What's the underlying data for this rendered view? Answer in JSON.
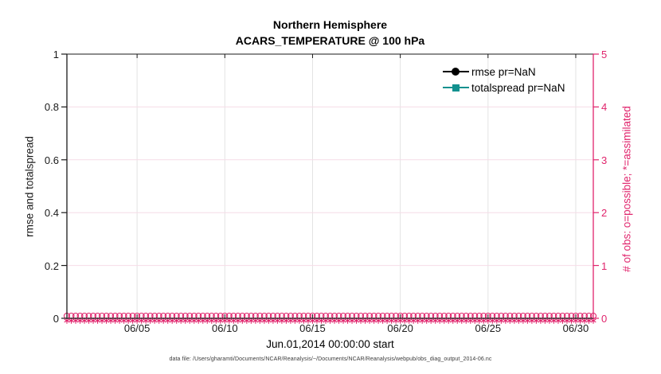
{
  "figure": {
    "title_line1": "Northern Hemisphere",
    "title_line2": "ACARS_TEMPERATURE @ 100 hPa",
    "xlabel": "Jun.01,2014 00:00:00 start",
    "ylabel_left": "rmse and totalspread",
    "ylabel_right": "# of obs: o=possible; *=assimilated",
    "caption": "data file: /Users/gharamti/Documents/NCAR/Reanalysis/~/Documents/NCAR/Reanalysis/webpub/obs_diag_output_2014-06.nc"
  },
  "legend": {
    "items": [
      {
        "label": "rmse pr=NaN",
        "marker": "circle",
        "color": "#000000"
      },
      {
        "label": "totalspread pr=NaN",
        "marker": "square",
        "color": "#12918f"
      }
    ]
  },
  "colors": {
    "obs_pink": "#e0246c",
    "teal": "#12918f",
    "axis_black": "#1a1a1a",
    "grid_gray": "#e3e3e3",
    "grid_pink": "#f6dce7"
  },
  "chart_data": {
    "type": "line",
    "title": "Northern Hemisphere — ACARS_TEMPERATURE @ 100 hPa",
    "xlabel": "Jun.01,2014 00:00:00 start",
    "x_axis": {
      "tick_labels": [
        "06/05",
        "06/10",
        "06/15",
        "06/20",
        "06/25",
        "06/30"
      ],
      "tick_days": [
        4,
        9,
        14,
        19,
        24,
        29
      ],
      "range_days": [
        0,
        30
      ],
      "grid": true
    },
    "y_axis_left": {
      "label": "rmse and totalspread",
      "tick_labels": [
        "0",
        "0.2",
        "0.4",
        "0.6",
        "0.8",
        "1"
      ],
      "tick_values": [
        0,
        0.2,
        0.4,
        0.6,
        0.8,
        1
      ],
      "range": [
        0,
        1
      ]
    },
    "y_axis_right": {
      "label": "# of obs: o=possible; *=assimilated",
      "tick_labels": [
        "0",
        "1",
        "2",
        "3",
        "4",
        "5"
      ],
      "tick_values": [
        0,
        1,
        2,
        3,
        4,
        5
      ],
      "range": [
        0,
        5
      ]
    },
    "series": [
      {
        "name": "rmse pr=NaN",
        "axis": "left",
        "marker": "circle",
        "color": "#000000",
        "values": "NaN (no curve drawn)"
      },
      {
        "name": "totalspread pr=NaN",
        "axis": "left",
        "marker": "square",
        "color": "#12918f",
        "values": "NaN (no curve drawn)"
      },
      {
        "name": "# of obs possible",
        "axis": "right",
        "marker": "o",
        "constant_value": 0,
        "cadence_days": 0.25
      },
      {
        "name": "# of obs assimilated",
        "axis": "right",
        "marker": "*",
        "constant_value": 0,
        "cadence_days": 0.25
      }
    ],
    "legend_position": "top-right-inside",
    "grid": true
  }
}
